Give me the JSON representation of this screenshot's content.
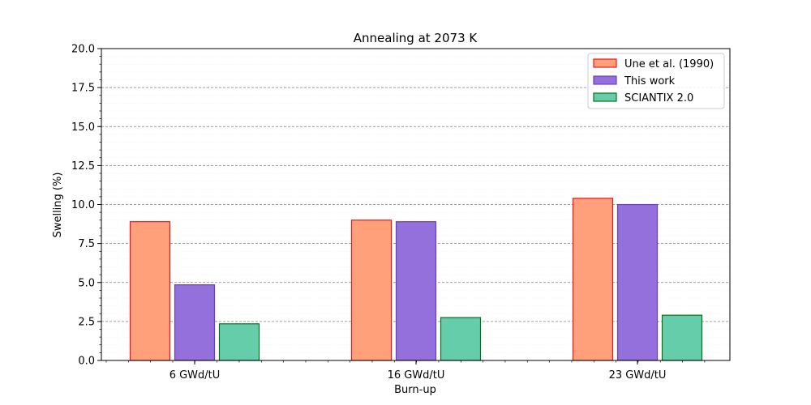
{
  "chart_data": {
    "type": "bar",
    "title": "Annealing at 2073 K",
    "xlabel": "Burn-up",
    "ylabel": "Swelling (%)",
    "categories": [
      "6 GWd/tU",
      "16 GWd/tU",
      "23 GWd/tU"
    ],
    "ylim": [
      0,
      20
    ],
    "yticks": [
      "0.0",
      "2.5",
      "5.0",
      "7.5",
      "10.0",
      "12.5",
      "15.0",
      "17.5",
      "20.0"
    ],
    "grid": "horizontal dashed (major), faint minor",
    "legend_position": "top-right",
    "series": [
      {
        "name": "Une et al. (1990)",
        "values": [
          8.9,
          9.0,
          10.4
        ],
        "fill": "#ffa07a",
        "edge": "#e8191b"
      },
      {
        "name": "This work",
        "values": [
          4.85,
          8.9,
          10.0
        ],
        "fill": "#9370db",
        "edge": "#6a3fc0"
      },
      {
        "name": "SCIANTIX 2.0",
        "values": [
          2.35,
          2.75,
          2.9
        ],
        "fill": "#66cdaa",
        "edge": "#0b6e1e"
      }
    ]
  }
}
